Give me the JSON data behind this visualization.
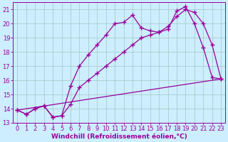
{
  "xlabel": "Windchill (Refroidissement éolien,°C)",
  "bg_color": "#cceeff",
  "line_color": "#990099",
  "grid_color": "#aacccc",
  "xlim": [
    -0.5,
    23.5
  ],
  "ylim": [
    13,
    21.5
  ],
  "yticks": [
    13,
    14,
    15,
    16,
    17,
    18,
    19,
    20,
    21
  ],
  "xticks": [
    0,
    1,
    2,
    3,
    4,
    5,
    6,
    7,
    8,
    9,
    10,
    11,
    12,
    13,
    14,
    15,
    16,
    17,
    18,
    19,
    20,
    21,
    22,
    23
  ],
  "line1_x": [
    0,
    1,
    2,
    3,
    4,
    5,
    6,
    7,
    8,
    9,
    10,
    11,
    12,
    13,
    14,
    15,
    16,
    17,
    18,
    19,
    20,
    21,
    22,
    23
  ],
  "line1_y": [
    13.9,
    13.6,
    14.0,
    14.2,
    13.4,
    13.5,
    15.6,
    17.0,
    17.8,
    18.5,
    19.2,
    20.0,
    20.1,
    20.6,
    19.7,
    19.5,
    19.4,
    19.6,
    20.9,
    21.2,
    20.0,
    18.3,
    16.2,
    16.1
  ],
  "line2_x": [
    0,
    1,
    2,
    3,
    4,
    5,
    6,
    7,
    8,
    9,
    10,
    11,
    12,
    13,
    14,
    15,
    16,
    17,
    18,
    19,
    20,
    21,
    22,
    23
  ],
  "line2_y": [
    13.9,
    13.6,
    14.0,
    14.2,
    13.4,
    13.5,
    14.3,
    15.5,
    16.0,
    16.5,
    17.0,
    17.5,
    18.0,
    18.5,
    19.0,
    19.2,
    19.4,
    19.8,
    20.5,
    21.0,
    20.8,
    20.0,
    18.5,
    16.1
  ],
  "line3_x": [
    0,
    23
  ],
  "line3_y": [
    13.9,
    16.1
  ],
  "xlabel_fontsize": 6.5,
  "tick_fontsize": 6.0
}
